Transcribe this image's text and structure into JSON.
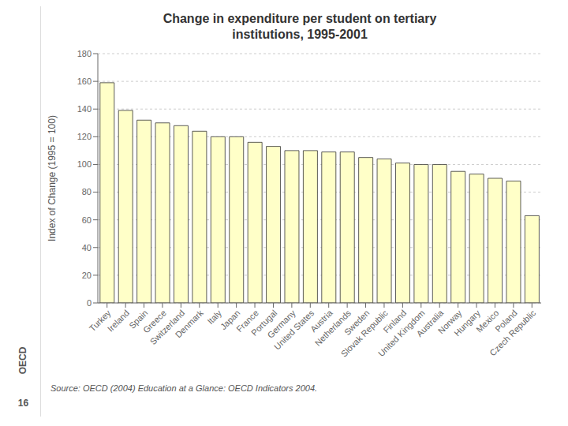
{
  "chart_data": {
    "type": "bar",
    "title": "Change in expenditure per student on tertiary\ninstitutions, 1995-2001",
    "ylabel": "Index of Change (1995 = 100)",
    "annotations": [
      "16",
      "OECD",
      "Source: OECD (2004)  Education at a Glance: OECD Indicators 2004."
    ],
    "categories": [
      "Turkey",
      "Ireland",
      "Spain",
      "Greece",
      "Switzerland",
      "Denmark",
      "Italy",
      "Japan",
      "France",
      "Portugal",
      "Germany",
      "United States",
      "Austria",
      "Netherlands",
      "Sweden",
      "Slovak Republic",
      "Finland",
      "United Kingdom",
      "Australia",
      "Norway",
      "Hungary",
      "Mexico",
      "Poland",
      "Czech Republic"
    ],
    "values": [
      159,
      139,
      132,
      130,
      128,
      124,
      120,
      120,
      116,
      113,
      110,
      110,
      109,
      109,
      105,
      104,
      101,
      100,
      100,
      95,
      93,
      90,
      88,
      63
    ],
    "color": "#FFFFC8",
    "ylim": [
      0,
      180
    ],
    "yticks": [
      0,
      20,
      40,
      60,
      80,
      100,
      120,
      140,
      160,
      180
    ],
    "grid": true
  }
}
